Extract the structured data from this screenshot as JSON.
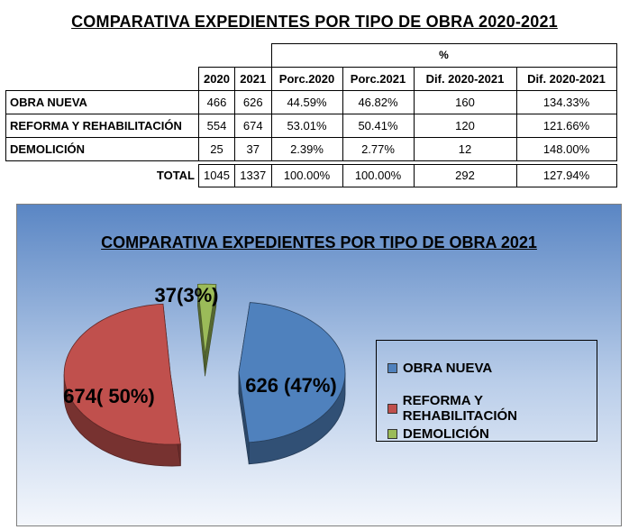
{
  "title": "COMPARATIVA EXPEDIENTES POR TIPO DE OBRA 2020-2021",
  "table": {
    "percent_header": "%",
    "columns": [
      "2020",
      "2021",
      "Porc.2020",
      "Porc.2021",
      "Dif. 2020-2021",
      "Dif. 2020-2021"
    ],
    "rows": [
      {
        "label": "OBRA NUEVA",
        "values": [
          "466",
          "626",
          "44.59%",
          "46.82%",
          "160",
          "134.33%"
        ]
      },
      {
        "label": "REFORMA Y REHABILITACIÓN",
        "values": [
          "554",
          "674",
          "53.01%",
          "50.41%",
          "120",
          "121.66%"
        ]
      },
      {
        "label": "DEMOLICIÓN",
        "values": [
          "25",
          "37",
          "2.39%",
          "2.77%",
          "12",
          "148.00%"
        ]
      }
    ],
    "total": {
      "label": "TOTAL",
      "values": [
        "1045",
        "1337",
        "100.00%",
        "100.00%",
        "292",
        "127.94%"
      ]
    }
  },
  "chart_data": {
    "type": "pie",
    "title": "COMPARATIVA EXPEDIENTES POR TIPO DE OBRA 2021",
    "categories": [
      "OBRA NUEVA",
      "REFORMA Y REHABILITACIÓN",
      "DEMOLICIÓN"
    ],
    "values": [
      626,
      674,
      37
    ],
    "data_labels": [
      "626 (47%)",
      "674( 50%)",
      "37(3%)"
    ],
    "colors": [
      "#4f81bd",
      "#c0504d",
      "#9bbb59"
    ],
    "exploded": true,
    "3d": true,
    "legend_position": "right"
  }
}
